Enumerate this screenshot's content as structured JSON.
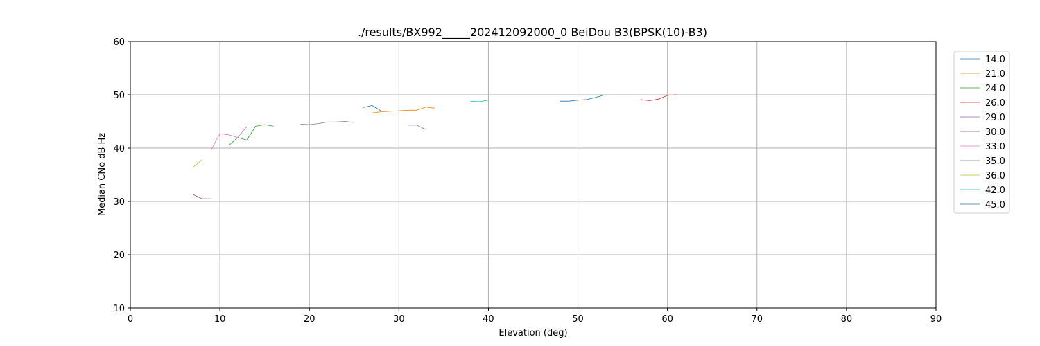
{
  "chart_data": {
    "type": "line",
    "title": "./results/BX992_____202412092000_0 BeiDou B3(BPSK(10)-B3)",
    "xlabel": "Elevation (deg)",
    "ylabel": "Median CNo dB Hz",
    "xlim": [
      0,
      90
    ],
    "ylim": [
      10,
      60
    ],
    "xticks": [
      "0",
      "10",
      "20",
      "30",
      "40",
      "50",
      "60",
      "70",
      "80",
      "90"
    ],
    "yticks": [
      "10",
      "20",
      "30",
      "40",
      "50",
      "60"
    ],
    "grid": true,
    "legend_position": "right",
    "series": [
      {
        "name": "14.0",
        "color": "#1f77b4",
        "points": [
          [
            48,
            48.8
          ],
          [
            49,
            48.8
          ],
          [
            50,
            49.0
          ],
          [
            51,
            49.1
          ],
          [
            52,
            49.5
          ],
          [
            53,
            50.0
          ]
        ]
      },
      {
        "name": "21.0",
        "color": "#ff7f0e",
        "points": [
          [
            27,
            46.6
          ],
          [
            28,
            46.8
          ],
          [
            29,
            46.9
          ],
          [
            30,
            47.0
          ],
          [
            31,
            47.1
          ],
          [
            32,
            47.1
          ],
          [
            33,
            47.7
          ],
          [
            34,
            47.5
          ]
        ]
      },
      {
        "name": "24.0",
        "color": "#2ca02c",
        "points": [
          [
            11,
            40.5
          ],
          [
            12,
            42.0
          ],
          [
            13,
            41.5
          ],
          [
            14,
            44.1
          ],
          [
            15,
            44.4
          ],
          [
            16,
            44.1
          ]
        ]
      },
      {
        "name": "26.0",
        "color": "#d62728",
        "points": [
          [
            57,
            49.1
          ],
          [
            58,
            48.9
          ],
          [
            59,
            49.2
          ],
          [
            60,
            49.9
          ],
          [
            61,
            50.0
          ]
        ]
      },
      {
        "name": "29.0",
        "color": "#9467bd",
        "points": [
          [
            31,
            44.3
          ],
          [
            32,
            44.3
          ],
          [
            33,
            43.5
          ]
        ]
      },
      {
        "name": "30.0",
        "color": "#8c564b",
        "points": [
          [
            7,
            31.3
          ],
          [
            8,
            30.5
          ],
          [
            9,
            30.5
          ]
        ]
      },
      {
        "name": "33.0",
        "color": "#e377c2",
        "points": [
          [
            9,
            39.6
          ],
          [
            10,
            42.7
          ],
          [
            11,
            42.5
          ],
          [
            12,
            42.0
          ],
          [
            13,
            44.0
          ]
        ]
      },
      {
        "name": "35.0",
        "color": "#7f7f7f",
        "points": [
          [
            19,
            44.5
          ],
          [
            20,
            44.4
          ],
          [
            21,
            44.6
          ],
          [
            22,
            44.9
          ],
          [
            23,
            44.9
          ],
          [
            24,
            45.0
          ],
          [
            25,
            44.8
          ]
        ]
      },
      {
        "name": "36.0",
        "color": "#bcbd22",
        "points": [
          [
            7,
            36.4
          ],
          [
            8,
            37.8
          ]
        ]
      },
      {
        "name": "42.0",
        "color": "#17becf",
        "points": [
          [
            38,
            48.8
          ],
          [
            39,
            48.7
          ],
          [
            40,
            49.0
          ]
        ]
      },
      {
        "name": "45.0",
        "color": "#1f77b4",
        "points": [
          [
            26,
            47.6
          ],
          [
            27,
            48.0
          ],
          [
            28,
            47.0
          ]
        ]
      }
    ]
  }
}
